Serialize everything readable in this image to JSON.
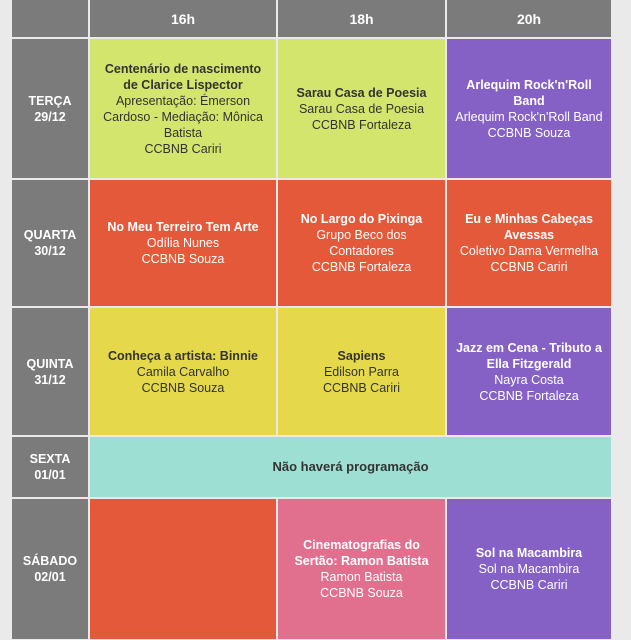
{
  "header": {
    "corner": "",
    "times": [
      "16h",
      "18h",
      "20h"
    ]
  },
  "colors": {
    "gray": "#7b7b7b",
    "lime": "#d4e56e",
    "purple": "#8561c5",
    "orange": "#e4593a",
    "yellow": "#e5d84a",
    "teal": "#9edfd4",
    "pink": "#e0708e"
  },
  "rows": [
    {
      "day": "TERÇA",
      "date": "29/12",
      "events": [
        {
          "title": "Centenário de nascimento de Clarice Lispector",
          "lines": [
            "Apresentação: Émerson Cardoso - Mediação: Mônica Batista",
            "CCBNB Cariri"
          ],
          "color": "#d4e56e",
          "text": "dark"
        },
        {
          "title": "Sarau Casa de Poesia",
          "lines": [
            "Sarau Casa de Poesia",
            "CCBNB Fortaleza"
          ],
          "color": "#d4e56e",
          "text": "dark"
        },
        {
          "title": "Arlequim Rock'n'Roll Band",
          "lines": [
            "Arlequim Rock'n'Roll Band",
            "CCBNB Souza"
          ],
          "color": "#8561c5",
          "text": "light"
        }
      ]
    },
    {
      "day": "QUARTA",
      "date": "30/12",
      "events": [
        {
          "title": "No Meu Terreiro Tem Arte",
          "lines": [
            "Odília Nunes",
            "CCBNB Souza"
          ],
          "color": "#e4593a",
          "text": "light"
        },
        {
          "title": "No Largo do Pixinga",
          "lines": [
            "Grupo Beco dos Contadores",
            "CCBNB Fortaleza"
          ],
          "color": "#e4593a",
          "text": "light"
        },
        {
          "title": "Eu e Minhas Cabeças Avessas",
          "lines": [
            "Coletivo Dama Vermelha",
            "CCBNB Cariri"
          ],
          "color": "#e4593a",
          "text": "light"
        }
      ]
    },
    {
      "day": "QUINTA",
      "date": "31/12",
      "events": [
        {
          "title": "Conheça a artista: Binnie",
          "lines": [
            "Camila Carvalho",
            "CCBNB Souza"
          ],
          "color": "#e5d84a",
          "text": "dark"
        },
        {
          "title": "Sapiens",
          "lines": [
            "Edilson Parra",
            "CCBNB Cariri"
          ],
          "color": "#e5d84a",
          "text": "dark"
        },
        {
          "title": "Jazz em Cena - Tributo a Ella Fitzgerald",
          "lines": [
            "Nayra Costa",
            "CCBNB Fortaleza"
          ],
          "color": "#8561c5",
          "text": "light"
        }
      ]
    },
    {
      "day": "SEXTA",
      "date": "01/01",
      "notice": "Não haverá programação",
      "color": "#9edfd4"
    },
    {
      "day": "SÁBADO",
      "date": "02/01",
      "events": [
        {
          "title": "",
          "lines": [],
          "color": "#e4593a",
          "text": "light"
        },
        {
          "title": "Cinematografias do Sertão: Ramon Batista",
          "lines": [
            "Ramon Batista",
            "CCBNB Souza"
          ],
          "color": "#e0708e",
          "text": "light"
        },
        {
          "title": "Sol na Macambira",
          "lines": [
            "Sol na Macambira",
            "CCBNB Cariri"
          ],
          "color": "#8561c5",
          "text": "light"
        }
      ]
    }
  ]
}
